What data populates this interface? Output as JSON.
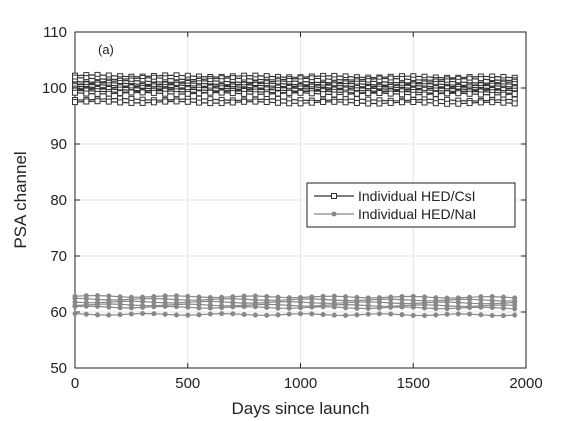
{
  "chart_data": {
    "type": "line",
    "annotation": "(a)",
    "xlabel": "Days since launch",
    "ylabel": "PSA channel",
    "xlim": [
      0,
      2000
    ],
    "ylim": [
      50,
      110
    ],
    "xticks": [
      0,
      500,
      1000,
      1500,
      2000
    ],
    "yticks": [
      50,
      60,
      70,
      80,
      90,
      100,
      110
    ],
    "grid": true,
    "legend_position": "center-right",
    "x": [
      0,
      50,
      100,
      150,
      200,
      250,
      300,
      350,
      400,
      450,
      500,
      550,
      600,
      650,
      700,
      750,
      800,
      850,
      900,
      950,
      1000,
      1050,
      1100,
      1150,
      1200,
      1250,
      1300,
      1350,
      1400,
      1450,
      1500,
      1550,
      1600,
      1650,
      1700,
      1750,
      1800,
      1850,
      1900,
      1950
    ],
    "series": [
      {
        "name": "Individual HED/CsI",
        "color": "#333333",
        "marker": "square",
        "lines": [
          {
            "start": 102.2,
            "end": 101.9
          },
          {
            "start": 101.7,
            "end": 101.5
          },
          {
            "start": 101.2,
            "end": 101.0
          },
          {
            "start": 100.8,
            "end": 100.6
          },
          {
            "start": 100.5,
            "end": 100.3
          },
          {
            "start": 100.2,
            "end": 100.0
          },
          {
            "start": 100.0,
            "end": 99.8
          },
          {
            "start": 99.7,
            "end": 99.5
          },
          {
            "start": 99.4,
            "end": 99.2
          },
          {
            "start": 99.1,
            "end": 98.9
          },
          {
            "start": 98.0,
            "end": 97.8
          },
          {
            "start": 97.5,
            "end": 97.3
          }
        ]
      },
      {
        "name": "Individual HED/NaI",
        "color": "#888888",
        "marker": "circle",
        "lines": [
          {
            "start": 62.8,
            "end": 62.6
          },
          {
            "start": 62.3,
            "end": 62.1
          },
          {
            "start": 61.8,
            "end": 61.6
          },
          {
            "start": 61.3,
            "end": 61.1
          },
          {
            "start": 60.9,
            "end": 60.7
          },
          {
            "start": 59.6,
            "end": 59.5
          }
        ]
      }
    ]
  }
}
